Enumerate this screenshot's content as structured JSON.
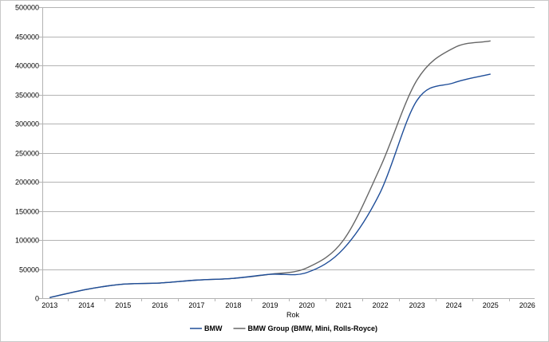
{
  "chart_data": {
    "type": "line",
    "title": "",
    "xlabel": "Rok",
    "ylabel": "",
    "xlim": [
      2012.8,
      2026.2
    ],
    "ylim": [
      0,
      500000
    ],
    "x_ticks": [
      "2013",
      "2014",
      "2015",
      "2016",
      "2017",
      "2018",
      "2019",
      "2020",
      "2021",
      "2022",
      "2023",
      "2024",
      "2025",
      "2026"
    ],
    "y_ticks": [
      "0",
      "50000",
      "100000",
      "150000",
      "200000",
      "250000",
      "300000",
      "350000",
      "400000",
      "450000",
      "500000"
    ],
    "grid": "horizontal",
    "legend_position": "bottom",
    "x": [
      2013,
      2014,
      2015,
      2016,
      2017,
      2018,
      2019,
      2020,
      2021,
      2022,
      2023,
      2024,
      2025
    ],
    "series": [
      {
        "name": "BMW",
        "color": "#1f4e99",
        "values": [
          1000,
          15000,
          24000,
          26000,
          31000,
          34000,
          41000,
          44000,
          85000,
          182000,
          340000,
          370000,
          385000
        ]
      },
      {
        "name": "BMW Group (BMW, Mini, Rolls-Royce)",
        "color": "#666666",
        "values": [
          1000,
          15000,
          24000,
          26000,
          31000,
          34000,
          41000,
          52000,
          100000,
          225000,
          375000,
          430000,
          442000
        ]
      }
    ]
  }
}
